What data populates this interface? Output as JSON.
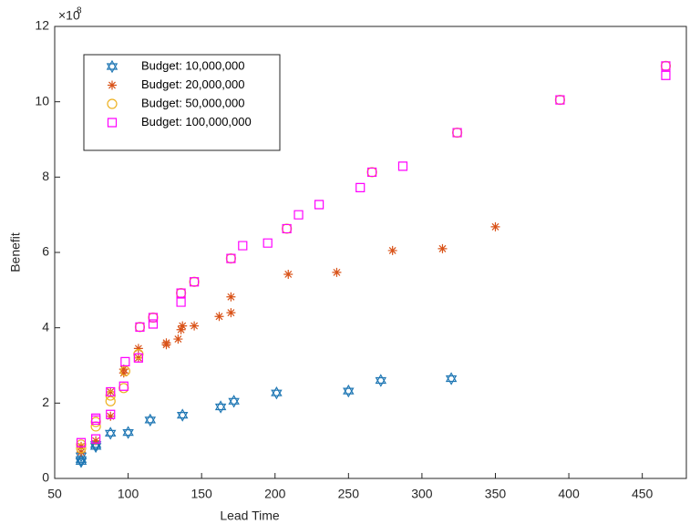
{
  "chart_data": {
    "type": "scatter",
    "x_label": "Lead Time",
    "y_label": "Benefit",
    "y_exponent": {
      "base": "×10",
      "power": "8"
    },
    "xlim": [
      50,
      480
    ],
    "xticks": [
      50,
      100,
      150,
      200,
      250,
      300,
      350,
      400,
      450
    ],
    "ylim": [
      0,
      12
    ],
    "yticks": [
      0,
      2,
      4,
      6,
      8,
      10,
      12
    ],
    "legend": "upper left",
    "series": [
      {
        "name": "Budget: 10,000,000",
        "color": "#1f77b4",
        "marker": "hexagram",
        "x": [
          68,
          68,
          68,
          78,
          78,
          88,
          100,
          115,
          137,
          163,
          172,
          201,
          250,
          272,
          320
        ],
        "values": [
          0.45,
          0.5,
          0.6,
          0.85,
          0.9,
          1.2,
          1.22,
          1.55,
          1.68,
          1.9,
          2.05,
          2.27,
          2.32,
          2.6,
          2.65
        ]
      },
      {
        "name": "Budget: 20,000,000",
        "color": "#d95319",
        "marker": "asterisk",
        "x": [
          68,
          68,
          78,
          88,
          88,
          97,
          97,
          107,
          107,
          126,
          126,
          134,
          136,
          137,
          145,
          162,
          170,
          170,
          209,
          242,
          280,
          314,
          350
        ],
        "values": [
          0.7,
          0.85,
          1.0,
          1.65,
          2.3,
          2.8,
          2.9,
          3.2,
          3.45,
          3.55,
          3.6,
          3.7,
          3.95,
          4.05,
          4.05,
          4.3,
          4.4,
          4.82,
          5.42,
          5.47,
          6.05,
          6.1,
          6.68
        ]
      },
      {
        "name": "Budget: 50,000,000",
        "color": "#edb120",
        "marker": "circle",
        "x": [
          68,
          68,
          78,
          78,
          88,
          88,
          97,
          98,
          107,
          108,
          117,
          136,
          145,
          170,
          208,
          266,
          324,
          394,
          466
        ],
        "values": [
          0.8,
          0.9,
          1.38,
          1.5,
          2.05,
          2.2,
          2.4,
          2.85,
          3.3,
          4.02,
          4.27,
          4.92,
          5.22,
          5.84,
          6.63,
          8.13,
          9.18,
          10.05,
          10.95
        ]
      },
      {
        "name": "Budget: 100,000,000",
        "color": "#ff00ff",
        "marker": "square",
        "x": [
          68,
          78,
          78,
          78,
          88,
          88,
          97,
          98,
          107,
          108,
          117,
          117,
          136,
          136,
          145,
          170,
          178,
          195,
          208,
          216,
          230,
          258,
          266,
          287,
          324,
          394,
          466,
          466
        ],
        "values": [
          0.95,
          1.05,
          1.55,
          1.6,
          1.7,
          2.3,
          2.45,
          3.1,
          3.2,
          4.02,
          4.1,
          4.27,
          4.68,
          4.92,
          5.22,
          5.84,
          6.18,
          6.25,
          6.63,
          7.0,
          7.27,
          7.72,
          8.13,
          8.29,
          9.18,
          10.05,
          10.7,
          10.95
        ]
      }
    ]
  }
}
